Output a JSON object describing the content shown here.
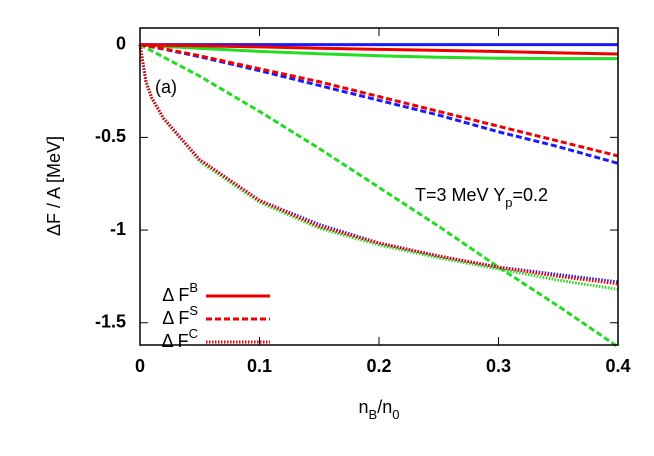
{
  "chart_data": {
    "type": "line",
    "annotations": [
      [
        "(a)"
      ],
      [
        "T=3 MeV Y",
        "p",
        "=0.2"
      ]
    ],
    "y_label": "ΔF / A  [MeV]",
    "x_label": [
      "n",
      "B",
      "/n",
      "0"
    ],
    "x": [
      0,
      0.005,
      0.01,
      0.02,
      0.05,
      0.1,
      0.15,
      0.2,
      0.25,
      0.3,
      0.35,
      0.4
    ],
    "series": [
      {
        "color": "#1a1aff",
        "dash": "solid",
        "values": [
          0,
          0,
          0,
          0,
          0,
          0,
          0,
          0,
          0,
          0,
          0,
          0
        ]
      },
      {
        "color": "#22dd22",
        "dash": "solid",
        "values": [
          0,
          -0.003,
          -0.005,
          -0.009,
          -0.02,
          -0.036,
          -0.049,
          -0.06,
          -0.068,
          -0.073,
          -0.075,
          -0.075
        ]
      },
      {
        "name": [
          "Δ F",
          "B"
        ],
        "color": "#ee0000",
        "dash": "solid",
        "values": [
          0,
          -0.001,
          -0.001,
          -0.003,
          -0.006,
          -0.012,
          -0.019,
          -0.025,
          -0.031,
          -0.037,
          -0.044,
          -0.05
        ]
      },
      {
        "color": "#22dd22",
        "dash": "dashed",
        "values": [
          0,
          -0.017,
          -0.034,
          -0.068,
          -0.17,
          -0.36,
          -0.56,
          -0.77,
          -0.98,
          -1.2,
          -1.41,
          -1.63
        ]
      },
      {
        "color": "#1a1aff",
        "dash": "dashed",
        "values": [
          0,
          -0.006,
          -0.012,
          -0.024,
          -0.065,
          -0.14,
          -0.22,
          -0.3,
          -0.38,
          -0.47,
          -0.55,
          -0.64
        ]
      },
      {
        "name": [
          "Δ F",
          "S"
        ],
        "color": "#ee0000",
        "dash": "dashed",
        "values": [
          0,
          -0.005,
          -0.011,
          -0.022,
          -0.06,
          -0.13,
          -0.2,
          -0.28,
          -0.36,
          -0.44,
          -0.52,
          -0.6
        ]
      },
      {
        "color": "#22dd22",
        "dash": "dotted",
        "values": [
          0,
          -0.2,
          -0.29,
          -0.4,
          -0.63,
          -0.85,
          -0.99,
          -1.08,
          -1.15,
          -1.21,
          -1.27,
          -1.32
        ]
      },
      {
        "color": "#1a1aff",
        "dash": "dotted",
        "values": [
          0,
          -0.2,
          -0.29,
          -0.4,
          -0.62,
          -0.84,
          -0.97,
          -1.07,
          -1.14,
          -1.2,
          -1.24,
          -1.28
        ]
      },
      {
        "name": [
          "Δ F",
          "C"
        ],
        "color": "#ee0000",
        "dash": "dotted",
        "values": [
          0,
          -0.2,
          -0.29,
          -0.4,
          -0.62,
          -0.84,
          -0.98,
          -1.07,
          -1.14,
          -1.2,
          -1.25,
          -1.29
        ]
      }
    ],
    "xlim": [
      0,
      0.4
    ],
    "ylim": [
      -1.62,
      0.09
    ],
    "xticks": [
      0,
      0.1,
      0.2,
      0.3,
      0.4
    ],
    "yticks": [
      0,
      -0.5,
      -1,
      -1.5
    ],
    "legend": "lower left"
  }
}
